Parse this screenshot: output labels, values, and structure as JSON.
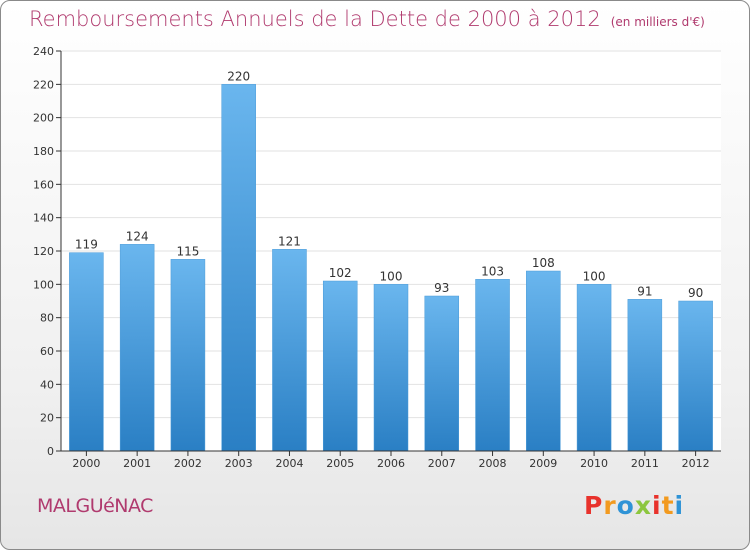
{
  "chart_data": {
    "type": "bar",
    "title": "Remboursements Annuels de la Dette de 2000 à 2012",
    "subtitle": "(en milliers d'€)",
    "categories": [
      "2000",
      "2001",
      "2002",
      "2003",
      "2004",
      "2005",
      "2006",
      "2007",
      "2008",
      "2009",
      "2010",
      "2011",
      "2012"
    ],
    "values": [
      119,
      124,
      115,
      220,
      121,
      102,
      100,
      93,
      103,
      108,
      100,
      91,
      90
    ],
    "ylim": [
      0,
      240
    ],
    "yticks": [
      0,
      20,
      40,
      60,
      80,
      100,
      120,
      140,
      160,
      180,
      200,
      220,
      240
    ],
    "grid": true,
    "legend": "none",
    "bar_color_top": "#6ab6ee",
    "bar_color_bottom": "#2a7fc4"
  },
  "footer": {
    "commune": "MALGUéNAC",
    "logo": "Proxiti",
    "logo_colors": [
      "#e8322c",
      "#f29a1f",
      "#2f93d6",
      "#8cc63e",
      "#e8322c",
      "#f29a1f",
      "#2f93d6"
    ]
  },
  "colors": {
    "title": "#b03a6e",
    "axis": "#333333",
    "grid": "#e2e2e2"
  }
}
